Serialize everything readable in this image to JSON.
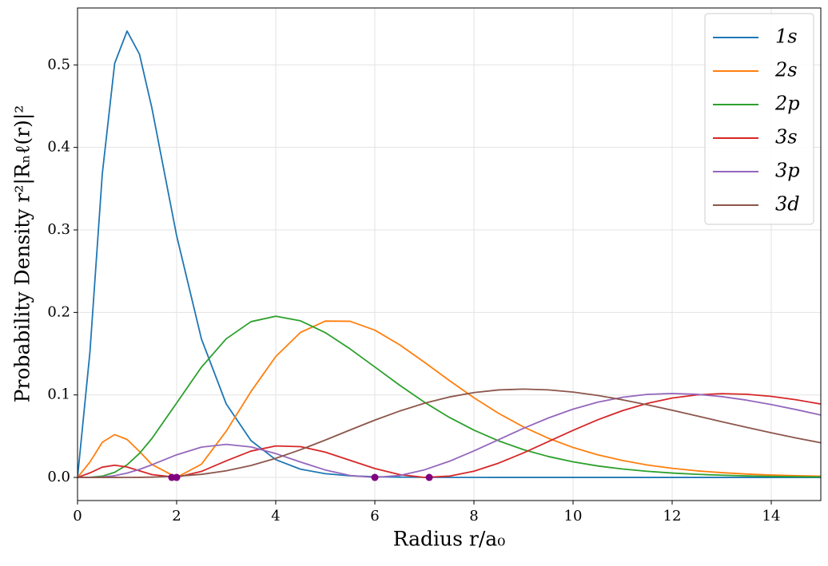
{
  "chart_data": {
    "type": "line",
    "xlabel": "Radius r/a₀",
    "ylabel": "Probability Density r²|Rₙℓ(r)|²",
    "x": [
      0,
      0.25,
      0.5,
      0.75,
      1,
      1.25,
      1.5,
      2,
      2.5,
      3,
      3.5,
      4,
      4.5,
      5,
      5.5,
      6,
      6.5,
      7,
      7.5,
      8,
      8.5,
      9,
      9.5,
      10,
      10.5,
      11,
      11.5,
      12,
      12.5,
      13,
      13.5,
      14,
      14.5,
      15
    ],
    "series": [
      {
        "name": "1s",
        "color": "#1f77b4",
        "values": [
          0,
          0.1516,
          0.368,
          0.502,
          0.541,
          0.513,
          0.448,
          0.293,
          0.168,
          0.0892,
          0.0447,
          0.0215,
          0.01,
          0.00454,
          0.00202,
          0.00088,
          0.00038,
          0.00016,
          7e-05,
          3e-05,
          1e-05,
          0,
          0,
          0,
          0,
          0,
          0,
          0,
          0,
          0,
          0,
          0,
          0,
          0
        ]
      },
      {
        "name": "2s",
        "color": "#ff7f0e",
        "values": [
          0,
          0.01863,
          0.0426,
          0.0519,
          0.046,
          0.03148,
          0.01569,
          0,
          0.01603,
          0.056,
          0.104,
          0.1465,
          0.1758,
          0.1895,
          0.1893,
          0.1785,
          0.1608,
          0.1396,
          0.1176,
          0.0966,
          0.0776,
          0.0612,
          0.0475,
          0.0363,
          0.0274,
          0.0205,
          0.0151,
          0.0111,
          0.008,
          0.0058,
          0.0041,
          0.0029,
          0.0021,
          0.0015
        ]
      },
      {
        "name": "2p",
        "color": "#2ca02c",
        "values": [
          0,
          0.000127,
          0.00158,
          0.00623,
          0.0153,
          0.02915,
          0.0471,
          0.0902,
          0.1336,
          0.168,
          0.1888,
          0.1954,
          0.1898,
          0.1755,
          0.1558,
          0.1339,
          0.1118,
          0.0912,
          0.0729,
          0.0573,
          0.0443,
          0.0337,
          0.0254,
          0.0189,
          0.0139,
          0.0102,
          0.0074,
          0.0053,
          0.0038,
          0.0027,
          0.0019,
          0.0013,
          0.0009,
          0.0006
        ]
      },
      {
        "name": "3s",
        "color": "#d62728",
        "values": [
          0,
          0.0055,
          0.01246,
          0.01483,
          0.01262,
          0.00802,
          0.00341,
          0.00021,
          0.00726,
          0.02005,
          0.03193,
          0.03818,
          0.03734,
          0.03063,
          0.02078,
          0.01085,
          0.00341,
          9e-05,
          0.00156,
          0.0076,
          0.01738,
          0.02975,
          0.0434,
          0.05713,
          0.06992,
          0.08099,
          0.08984,
          0.09622,
          0.10006,
          0.10151,
          0.1008,
          0.09823,
          0.09416,
          0.08895
        ]
      },
      {
        "name": "3p",
        "color": "#9467bd",
        "values": [
          0,
          4.4e-05,
          0.00055,
          0.00215,
          0.00522,
          0.00973,
          0.01533,
          0.02743,
          0.03673,
          0.0401,
          0.03697,
          0.02892,
          0.01867,
          0.00906,
          0.00238,
          0,
          0.00238,
          0.00918,
          0.0195,
          0.03215,
          0.04587,
          0.05949,
          0.07203,
          0.08276,
          0.09123,
          0.0972,
          0.10067,
          0.10178,
          0.10077,
          0.09797,
          0.09372,
          0.08836,
          0.08225,
          0.07567
        ]
      },
      {
        "name": "3d",
        "color": "#8c564b",
        "values": [
          0,
          0,
          1e-06,
          8.8e-06,
          4e-05,
          0.000135,
          0.00034,
          0.00137,
          0.00375,
          0.00802,
          0.01449,
          0.02313,
          0.03361,
          0.04531,
          0.05752,
          0.06947,
          0.08046,
          0.08993,
          0.09748,
          0.10288,
          0.10606,
          0.10709,
          0.10613,
          0.10345,
          0.09934,
          0.09409,
          0.08803,
          0.08143,
          0.07453,
          0.06758,
          0.06073,
          0.05412,
          0.04787,
          0.04204
        ]
      }
    ],
    "node_markers": {
      "color": "#800080",
      "x": [
        1.902,
        2,
        6,
        7.098
      ],
      "values": [
        0,
        0,
        0,
        0
      ]
    },
    "xlim": [
      0,
      15
    ],
    "xticks": [
      0,
      2,
      4,
      6,
      8,
      10,
      12,
      14
    ],
    "ylim": [
      -0.028,
      0.569
    ],
    "yticks": [
      {
        "value": 0,
        "label": "0.0"
      },
      0.1,
      0.2,
      0.3,
      0.4,
      0.5
    ],
    "grid": true,
    "legend": "upper right"
  }
}
